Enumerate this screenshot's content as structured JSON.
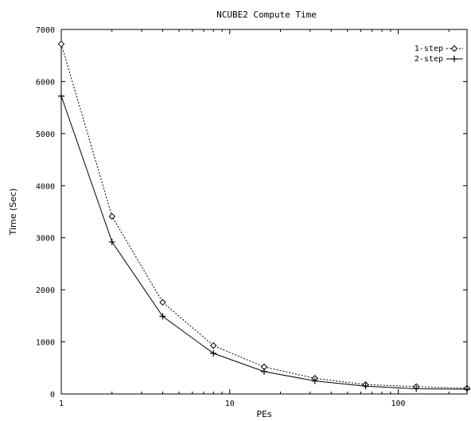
{
  "chart_data": {
    "type": "line",
    "title": "NCUBE2 Compute Time",
    "xlabel": "PEs",
    "ylabel": "Time (Sec)",
    "x_scale": "log",
    "xlim": [
      1,
      256
    ],
    "ylim": [
      0,
      7000
    ],
    "grid": false,
    "legend_position": "top-right",
    "x": [
      1,
      2,
      4,
      8,
      16,
      32,
      64,
      128,
      256
    ],
    "x_ticks": [
      1,
      10,
      100
    ],
    "x_tick_labels": [
      "1",
      "10",
      "100"
    ],
    "y_ticks": [
      0,
      1000,
      2000,
      3000,
      4000,
      5000,
      6000,
      7000
    ],
    "y_tick_labels": [
      "0",
      "1000",
      "2000",
      "3000",
      "4000",
      "5000",
      "6000",
      "7000"
    ],
    "series": [
      {
        "name": "1-step",
        "line_style": "dashed",
        "marker": "diamond",
        "values": [
          6720,
          3410,
          1760,
          930,
          520,
          300,
          180,
          140,
          110
        ]
      },
      {
        "name": "2-step",
        "line_style": "solid",
        "marker": "plus",
        "values": [
          5720,
          2920,
          1490,
          780,
          430,
          250,
          150,
          100,
          90
        ]
      }
    ]
  }
}
